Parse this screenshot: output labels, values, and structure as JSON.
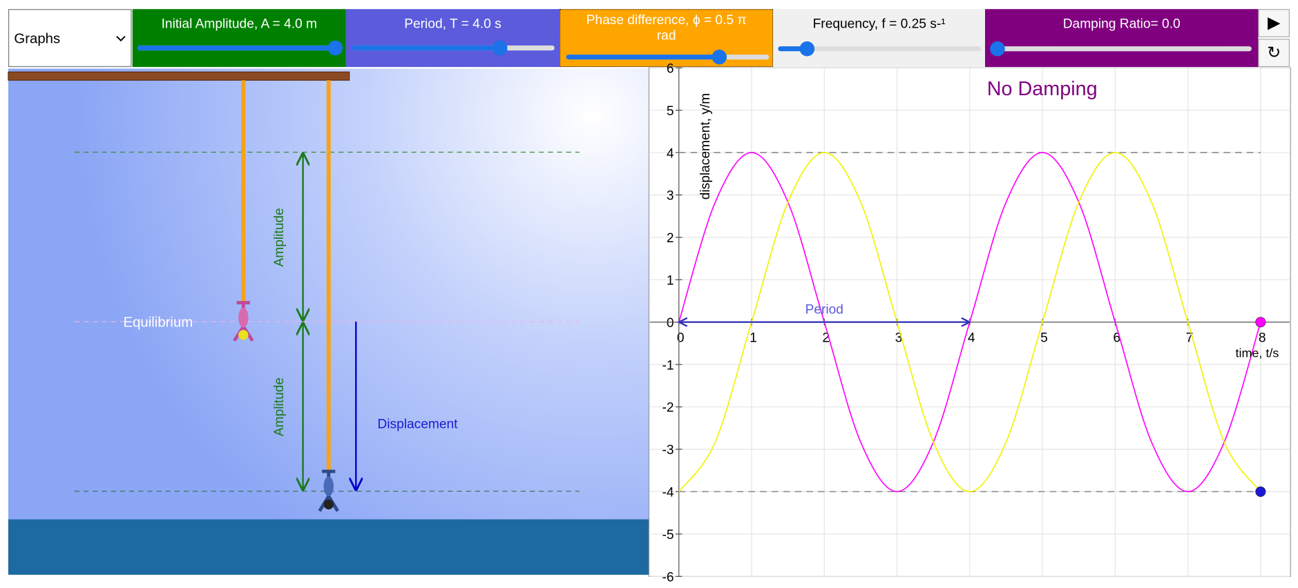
{
  "toolbar": {
    "select": "Graphs",
    "controls": [
      "Initial Amplitude, A = 4.0 m",
      "Period, T = 4.0 s",
      "Phase difference, ϕ = 0.5 π rad",
      "Frequency, f = 0.25 s-¹",
      "Damping Ratio= 0.0"
    ],
    "buttons": [
      "▶",
      "↻"
    ]
  },
  "scene": {
    "equilibrium": "Equilibrium",
    "amplitude_labels": [
      "Amplitude",
      "Amplitude"
    ],
    "displacement": "Displacement"
  },
  "chart_data": {
    "type": "line",
    "title": "No Damping",
    "xlabel": "time, t/s",
    "ylabel": "displacement, y/m",
    "x": [
      0,
      0.5,
      1,
      1.5,
      2,
      2.5,
      3,
      3.5,
      4,
      4.5,
      5,
      5.5,
      6,
      6.5,
      7,
      7.5,
      8
    ],
    "series": [
      {
        "color": "#ff00ff",
        "values": [
          0,
          2.83,
          4,
          2.83,
          0,
          -2.83,
          -4,
          -2.83,
          0,
          2.83,
          4,
          2.83,
          0,
          -2.83,
          -4,
          -2.83,
          0
        ]
      },
      {
        "color": "#f2f200",
        "values": [
          -4,
          -2.83,
          0,
          2.83,
          4,
          2.83,
          0,
          -2.83,
          -4,
          -2.83,
          0,
          2.83,
          4,
          2.83,
          0,
          -2.83,
          -4
        ]
      }
    ],
    "points": [
      {
        "x": 8,
        "y": 0,
        "color": "#ff00ff"
      },
      {
        "x": 8,
        "y": -4,
        "color": "#1a1ad6"
      }
    ],
    "reference_lines": [
      4,
      -4
    ],
    "annotation": {
      "text": "Period",
      "x": [
        0,
        4
      ],
      "y": 0
    },
    "xlim": [
      -0.4,
      8.4
    ],
    "ylim": [
      -6,
      6
    ],
    "xticks": [
      0,
      1,
      2,
      3,
      4,
      5,
      6,
      7,
      8
    ],
    "yticks": [
      -6,
      -5,
      -4,
      -3,
      -2,
      -1,
      0,
      1,
      2,
      3,
      4,
      5,
      6
    ],
    "grid": true
  }
}
